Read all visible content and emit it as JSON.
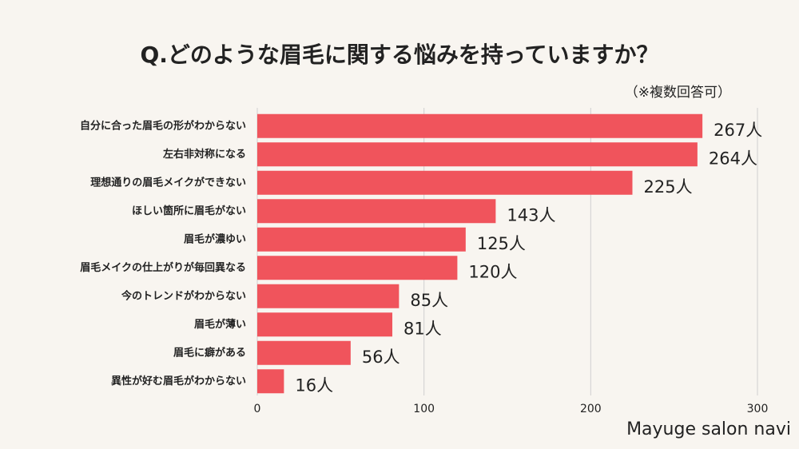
{
  "chart_data": {
    "type": "bar",
    "orientation": "horizontal",
    "title": "Q.どのような眉毛に関する悩みを持っていますか？",
    "subtitle": "（※複数回答可）",
    "brand": "Mayuge salon navi",
    "categories": [
      "自分に合った眉毛の形がわからない",
      "左右非対称になる",
      "理想通りの眉毛メイクができない",
      "ほしい箇所に眉毛がない",
      "眉毛が濃ゆい",
      "眉毛メイクの仕上がりが毎回異なる",
      "今のトレンドがわからない",
      "眉毛が薄い",
      "眉毛に癖がある",
      "異性が好む眉毛がわからない"
    ],
    "values": [
      267,
      264,
      225,
      143,
      125,
      120,
      85,
      81,
      56,
      16
    ],
    "value_labels": [
      "267人",
      "264人",
      "225人",
      "143人",
      "125人",
      "120人",
      "85人",
      "81人",
      "56人",
      "16人"
    ],
    "color": "#f0545c",
    "xlim": [
      0,
      300
    ],
    "xticks": [
      0,
      100,
      200,
      300
    ],
    "grid": true
  }
}
